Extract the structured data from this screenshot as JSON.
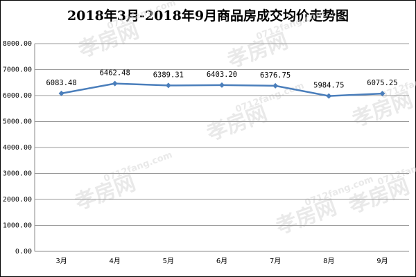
{
  "chart_data": {
    "type": "line",
    "title": "2018年3月-2018年9月商品房成交均价走势图",
    "categories": [
      "3月",
      "4月",
      "5月",
      "6月",
      "7月",
      "8月",
      "9月"
    ],
    "values": [
      6083.48,
      6462.48,
      6389.31,
      6403.2,
      6376.75,
      5984.75,
      6075.25
    ],
    "value_labels": [
      "6083.48",
      "6462.48",
      "6389.31",
      "6403.20",
      "6376.75",
      "5984.75",
      "6075.25"
    ],
    "color": "#4a7ebb",
    "ylim": [
      0,
      8000
    ],
    "yticks": [
      {
        "value": 0,
        "label": "0.00"
      },
      {
        "value": 1000,
        "label": "1000.00"
      },
      {
        "value": 2000,
        "label": "2000.00"
      },
      {
        "value": 3000,
        "label": "3000.00"
      },
      {
        "value": 4000,
        "label": "4000.00"
      },
      {
        "value": 5000,
        "label": "5000.00"
      },
      {
        "value": 6000,
        "label": "6000.00"
      },
      {
        "value": 7000,
        "label": "7000.00"
      },
      {
        "value": 8000,
        "label": "8000.00"
      }
    ],
    "grid": true,
    "watermark": [
      "孝房网",
      "0712fang.com"
    ]
  }
}
